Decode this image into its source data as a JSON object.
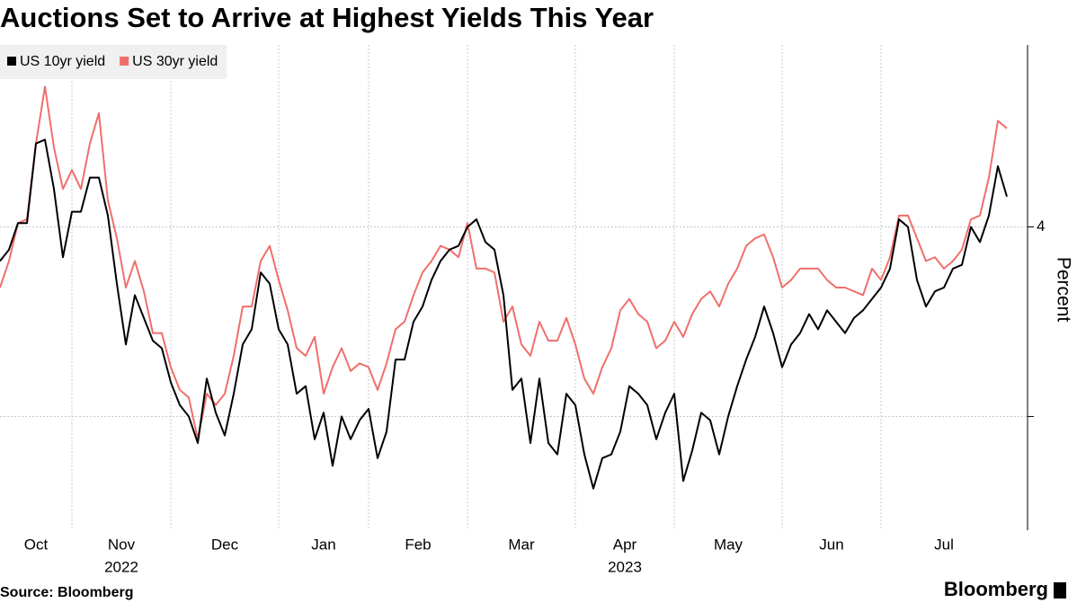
{
  "chart_data": {
    "type": "line",
    "title": "Auctions Set to Arrive at Highest Yields This Year",
    "y_label": "Percent",
    "source": "Source: Bloomberg",
    "logo": "Bloomberg",
    "categories": [
      "Oct",
      null,
      null,
      null,
      null,
      null,
      null,
      null,
      "Nov",
      null,
      null,
      null,
      null,
      null,
      null,
      null,
      null,
      null,
      null,
      "Dec",
      null,
      null,
      null,
      null,
      null,
      null,
      null,
      null,
      null,
      null,
      null,
      "Jan",
      null,
      null,
      null,
      null,
      null,
      null,
      null,
      null,
      null,
      "Feb",
      null,
      null,
      null,
      null,
      null,
      null,
      null,
      null,
      null,
      null,
      "Mar",
      null,
      null,
      null,
      null,
      null,
      null,
      null,
      null,
      null,
      null,
      null,
      "Apr",
      null,
      null,
      null,
      null,
      null,
      null,
      null,
      null,
      null,
      null,
      "May",
      null,
      null,
      null,
      null,
      null,
      null,
      null,
      null,
      null,
      null,
      null,
      "Jun",
      null,
      null,
      null,
      null,
      null,
      null,
      null,
      null,
      null,
      null,
      "Jul",
      null,
      null,
      null,
      null,
      null,
      null,
      null,
      null,
      null,
      null,
      null,
      null,
      null,
      null
    ],
    "category_years": [
      null,
      null,
      null,
      null,
      null,
      null,
      null,
      null,
      "2022",
      null,
      null,
      null,
      null,
      null,
      null,
      null,
      null,
      null,
      null,
      null,
      null,
      null,
      null,
      null,
      null,
      null,
      null,
      null,
      null,
      null,
      null,
      null,
      null,
      null,
      null,
      null,
      null,
      null,
      null,
      null,
      null,
      null,
      null,
      null,
      null,
      null,
      null,
      null,
      null,
      null,
      null,
      null,
      null,
      null,
      null,
      null,
      null,
      null,
      null,
      null,
      null,
      null,
      null,
      null,
      "2023",
      null,
      null,
      null,
      null,
      null,
      null,
      null,
      null,
      null,
      null,
      null,
      null,
      null,
      null,
      null,
      null,
      null,
      null,
      null,
      null,
      null,
      null,
      null,
      null,
      null,
      null,
      null,
      null,
      null,
      null,
      null,
      null,
      null,
      null,
      null,
      null,
      null,
      null,
      null,
      null,
      null,
      null,
      null,
      null,
      null,
      null,
      null,
      null
    ],
    "series": [
      {
        "name": "US 10yr yield",
        "color": "#000000",
        "values": [
          3.91,
          3.94,
          4.01,
          4.01,
          4.22,
          4.23,
          4.1,
          3.92,
          4.04,
          4.04,
          4.13,
          4.13,
          4.03,
          3.85,
          3.69,
          3.82,
          3.76,
          3.7,
          3.68,
          3.59,
          3.53,
          3.5,
          3.43,
          3.6,
          3.51,
          3.45,
          3.56,
          3.69,
          3.73,
          3.88,
          3.85,
          3.73,
          3.69,
          3.56,
          3.58,
          3.44,
          3.51,
          3.37,
          3.5,
          3.44,
          3.49,
          3.52,
          3.39,
          3.46,
          3.65,
          3.65,
          3.75,
          3.79,
          3.86,
          3.91,
          3.94,
          3.95,
          4.0,
          4.02,
          3.96,
          3.94,
          3.82,
          3.57,
          3.6,
          3.43,
          3.6,
          3.43,
          3.4,
          3.56,
          3.53,
          3.4,
          3.31,
          3.39,
          3.4,
          3.46,
          3.58,
          3.56,
          3.53,
          3.44,
          3.51,
          3.56,
          3.33,
          3.41,
          3.51,
          3.49,
          3.4,
          3.5,
          3.58,
          3.65,
          3.71,
          3.79,
          3.72,
          3.63,
          3.69,
          3.72,
          3.77,
          3.73,
          3.78,
          3.75,
          3.72,
          3.76,
          3.78,
          3.81,
          3.84,
          3.89,
          4.02,
          4.0,
          3.86,
          3.79,
          3.83,
          3.84,
          3.89,
          3.9,
          4.0,
          3.96,
          4.03,
          4.16,
          4.08
        ]
      },
      {
        "name": "US 30yr yield",
        "color": "#ef6f6c",
        "values": [
          3.84,
          3.91,
          4.01,
          4.02,
          4.22,
          4.37,
          4.21,
          4.1,
          4.15,
          4.1,
          4.22,
          4.3,
          4.07,
          3.97,
          3.84,
          3.91,
          3.83,
          3.72,
          3.72,
          3.63,
          3.57,
          3.55,
          3.44,
          3.56,
          3.53,
          3.56,
          3.66,
          3.79,
          3.79,
          3.91,
          3.95,
          3.86,
          3.78,
          3.68,
          3.66,
          3.71,
          3.56,
          3.63,
          3.68,
          3.62,
          3.64,
          3.63,
          3.57,
          3.64,
          3.73,
          3.75,
          3.82,
          3.88,
          3.91,
          3.95,
          3.94,
          3.92,
          4.01,
          3.89,
          3.89,
          3.88,
          3.75,
          3.79,
          3.69,
          3.66,
          3.75,
          3.7,
          3.7,
          3.76,
          3.69,
          3.6,
          3.56,
          3.63,
          3.68,
          3.78,
          3.81,
          3.77,
          3.75,
          3.68,
          3.7,
          3.75,
          3.71,
          3.77,
          3.81,
          3.83,
          3.79,
          3.85,
          3.89,
          3.95,
          3.97,
          3.98,
          3.92,
          3.84,
          3.86,
          3.89,
          3.89,
          3.89,
          3.86,
          3.84,
          3.84,
          3.83,
          3.82,
          3.89,
          3.86,
          3.92,
          4.03,
          4.03,
          3.97,
          3.91,
          3.92,
          3.89,
          3.91,
          3.94,
          4.02,
          4.03,
          4.13,
          4.28,
          4.26
        ]
      }
    ],
    "ylim": [
      3.2,
      4.48
    ],
    "yticks": [
      {
        "value": 3.5,
        "label": null
      },
      4
    ],
    "grid": true,
    "legend": "top-left"
  }
}
